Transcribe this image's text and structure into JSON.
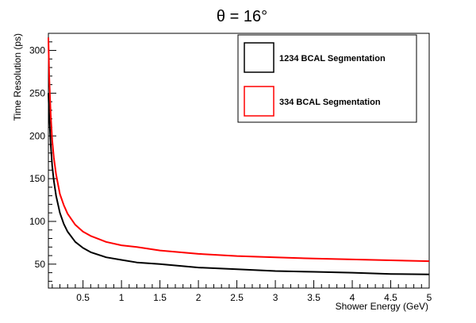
{
  "chart_data": {
    "type": "line",
    "title": "θ = 16°",
    "xlabel": "Shower Energy (GeV)",
    "ylabel": "Time Resolution (ps)",
    "xlim": [
      0.05,
      5.0
    ],
    "ylim": [
      22,
      320
    ],
    "x_ticks": [
      "0.5",
      "1",
      "1.5",
      "2",
      "2.5",
      "3",
      "3.5",
      "4",
      "4.5",
      "5"
    ],
    "y_ticks": [
      "50",
      "100",
      "150",
      "200",
      "250",
      "300"
    ],
    "grid": false,
    "legend_position": "top-right",
    "series": [
      {
        "name": "1234 BCAL Segmentation",
        "color": "#000000",
        "x": [
          0.05,
          0.06,
          0.08,
          0.1,
          0.12,
          0.15,
          0.2,
          0.25,
          0.3,
          0.4,
          0.5,
          0.6,
          0.8,
          1.0,
          1.2,
          1.5,
          2.0,
          2.5,
          3.0,
          3.5,
          4.0,
          4.5,
          5.0
        ],
        "y": [
          250,
          225,
          190,
          165,
          148,
          130,
          110,
          97,
          88,
          76,
          69,
          64,
          58,
          55,
          52,
          50,
          46,
          44,
          42,
          41,
          40,
          38.5,
          38
        ]
      },
      {
        "name": "334 BCAL Segmentation",
        "color": "#ff0000",
        "x": [
          0.05,
          0.06,
          0.08,
          0.1,
          0.12,
          0.15,
          0.2,
          0.25,
          0.3,
          0.4,
          0.5,
          0.6,
          0.8,
          1.0,
          1.2,
          1.5,
          2.0,
          2.5,
          3.0,
          3.5,
          4.0,
          4.5,
          5.0
        ],
        "y": [
          315,
          270,
          225,
          195,
          175,
          155,
          132,
          119,
          109,
          96,
          88,
          83,
          76,
          72,
          70,
          66,
          62,
          59.5,
          58,
          56.5,
          55.5,
          54.5,
          53.5
        ]
      }
    ]
  }
}
